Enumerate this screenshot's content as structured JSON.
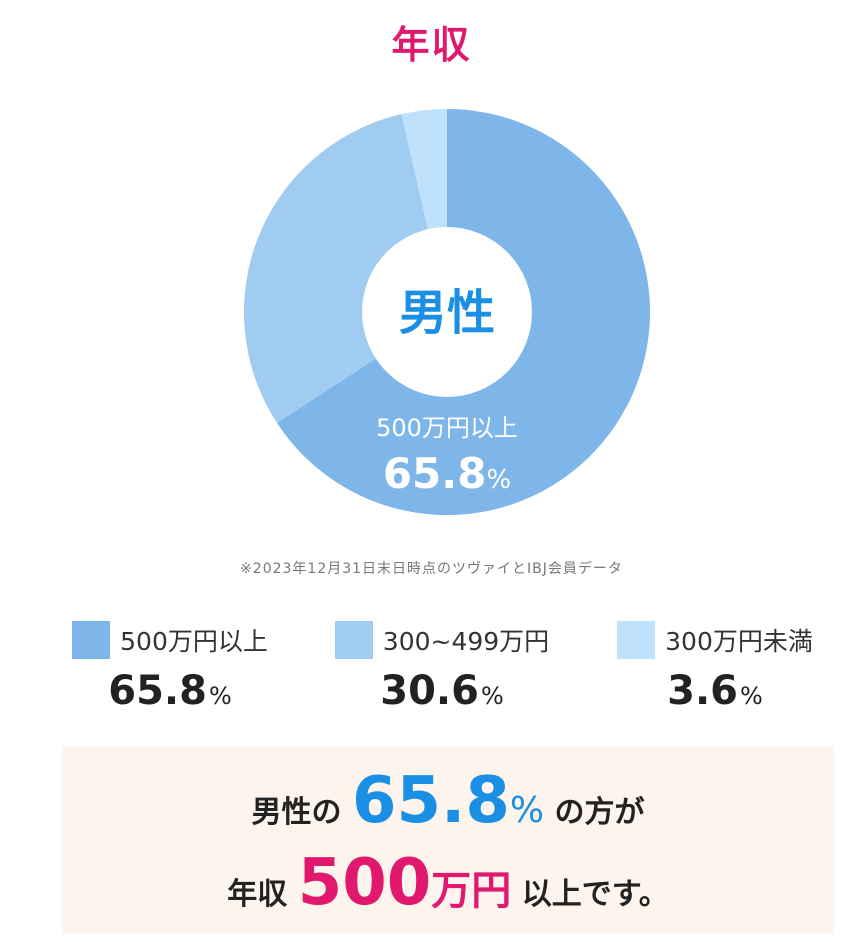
{
  "title": "年収",
  "chart_data": {
    "type": "pie",
    "center_label": "男性",
    "categories": [
      "500万円以上",
      "300~499万円",
      "300万円未満"
    ],
    "values": [
      65.8,
      30.6,
      3.6
    ],
    "unit": "%",
    "colors": [
      "#7eb6ea",
      "#a0ccf2",
      "#bfe1fb"
    ],
    "inner_label": {
      "text": "500万円以上",
      "value": "65.8",
      "unit": "%"
    }
  },
  "note": "※2023年12月31日末日時点のツヴァイとIBJ会員データ",
  "legend": [
    {
      "label": "500万円以上",
      "value": "65.8",
      "unit": "%"
    },
    {
      "label": "300~499万円",
      "value": "30.6",
      "unit": "%"
    },
    {
      "label": "300万円未満",
      "value": "3.6",
      "unit": "%"
    }
  ],
  "summary": {
    "line1": {
      "prefix": "男性の",
      "number": "65.8",
      "unit": "%",
      "suffix": "の方が"
    },
    "line2": {
      "prefix": "年収",
      "number": "500",
      "unit": "万円",
      "suffix": "以上です。"
    }
  }
}
